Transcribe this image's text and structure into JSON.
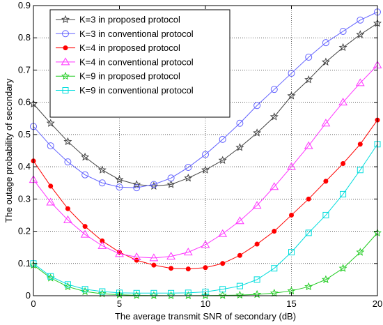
{
  "chart_data": {
    "type": "line",
    "title": "",
    "xlabel": "The average transmit SNR of secondary (dB)",
    "ylabel": "The outage probability of secondary",
    "xlim": [
      0,
      20
    ],
    "ylim": [
      0,
      0.9
    ],
    "xticks": [
      "0",
      "5",
      "10",
      "15",
      "20"
    ],
    "yticks": [
      "0",
      "0.1",
      "0.2",
      "0.3",
      "0.4",
      "0.5",
      "0.6",
      "0.7",
      "0.8",
      "0.9"
    ],
    "grid": true,
    "legend_position": "top-left",
    "x": [
      0,
      1,
      2,
      3,
      4,
      5,
      6,
      7,
      8,
      9,
      10,
      11,
      12,
      13,
      14,
      15,
      16,
      17,
      18,
      19,
      20
    ],
    "series": [
      {
        "name": "K=3 in proposed protocol",
        "color": "#404040",
        "marker": "star",
        "values": [
          0.595,
          0.535,
          0.478,
          0.43,
          0.39,
          0.36,
          0.345,
          0.34,
          0.345,
          0.365,
          0.39,
          0.42,
          0.46,
          0.505,
          0.555,
          0.62,
          0.67,
          0.725,
          0.77,
          0.81,
          0.845
        ]
      },
      {
        "name": "K=3 in conventional protocol",
        "color": "#6464ff",
        "marker": "circle",
        "values": [
          0.525,
          0.465,
          0.415,
          0.375,
          0.35,
          0.337,
          0.335,
          0.345,
          0.365,
          0.398,
          0.438,
          0.485,
          0.535,
          0.59,
          0.64,
          0.69,
          0.74,
          0.785,
          0.82,
          0.855,
          0.88
        ]
      },
      {
        "name": "K=4 in proposed protocol",
        "color": "#ff0000",
        "marker": "dot",
        "values": [
          0.418,
          0.34,
          0.27,
          0.215,
          0.17,
          0.135,
          0.11,
          0.095,
          0.085,
          0.083,
          0.087,
          0.1,
          0.125,
          0.16,
          0.2,
          0.25,
          0.3,
          0.355,
          0.41,
          0.47,
          0.545
        ]
      },
      {
        "name": "K=4 in conventional protocol",
        "color": "#ff33ff",
        "marker": "triangle",
        "values": [
          0.36,
          0.29,
          0.235,
          0.19,
          0.155,
          0.13,
          0.12,
          0.117,
          0.122,
          0.135,
          0.158,
          0.192,
          0.232,
          0.28,
          0.338,
          0.4,
          0.465,
          0.535,
          0.6,
          0.66,
          0.715
        ]
      },
      {
        "name": "K=9 in proposed protocol",
        "color": "#22cc22",
        "marker": "star",
        "values": [
          0.095,
          0.055,
          0.028,
          0.013,
          0.006,
          0.003,
          0.001,
          0.0005,
          0.0003,
          0.0003,
          0.0005,
          0.001,
          0.002,
          0.004,
          0.008,
          0.015,
          0.028,
          0.05,
          0.085,
          0.135,
          0.195
        ]
      },
      {
        "name": "K=9 in conventional protocol",
        "color": "#00dddd",
        "marker": "square",
        "values": [
          0.1,
          0.06,
          0.035,
          0.02,
          0.013,
          0.009,
          0.008,
          0.008,
          0.008,
          0.009,
          0.012,
          0.02,
          0.03,
          0.05,
          0.085,
          0.135,
          0.195,
          0.25,
          0.315,
          0.39,
          0.47
        ]
      }
    ]
  }
}
